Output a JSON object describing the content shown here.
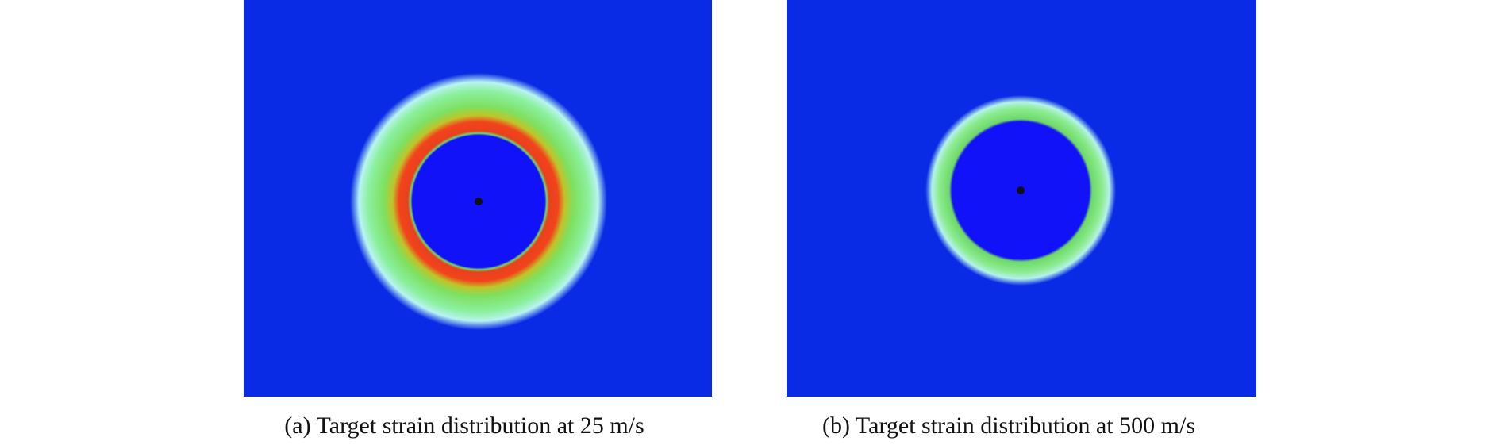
{
  "figures": [
    {
      "caption": "(a) Target strain distribution at 25 m/s"
    },
    {
      "caption": "(b) Target strain distribution at 500 m/s"
    }
  ]
}
